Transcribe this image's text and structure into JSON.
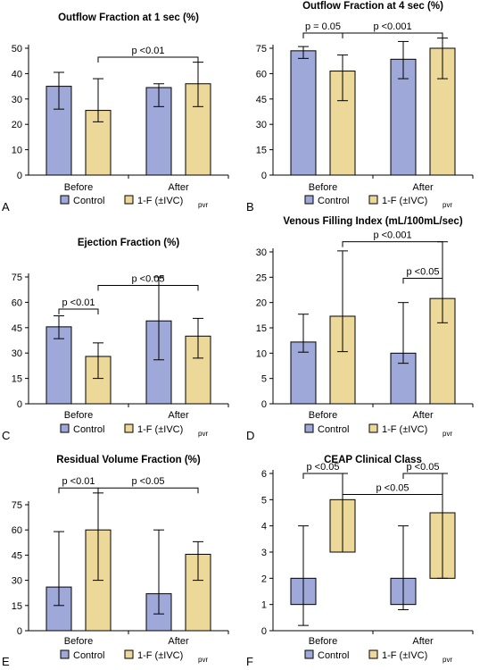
{
  "legend": {
    "control_label": "Control",
    "treatment_label_main": "1-F (±IVC)",
    "treatment_label_sub": "pvr",
    "colors": {
      "control": "#9ea9d9",
      "treatment": "#ecd99a"
    }
  },
  "chart_data": [
    {
      "id": "A",
      "type": "bar",
      "title": "Outflow Fraction at 1 sec (%)",
      "categories": [
        "Before",
        "After"
      ],
      "ylim": [
        0,
        50
      ],
      "yticks": [
        0,
        10,
        20,
        30,
        40,
        50
      ],
      "grid": false,
      "series": [
        {
          "name": "Control",
          "values": [
            35,
            34.5
          ],
          "err_low": [
            26,
            27
          ],
          "err_high": [
            40.5,
            36
          ]
        },
        {
          "name": "1-F (±IVC)pvr",
          "values": [
            25.5,
            36
          ],
          "err_low": [
            21,
            27
          ],
          "err_high": [
            38,
            44.5
          ]
        }
      ],
      "annotations": [
        {
          "text": "p <0.01",
          "from": [
            0,
            1
          ],
          "to": [
            1,
            1
          ],
          "y": 46.5
        }
      ]
    },
    {
      "id": "B",
      "type": "bar",
      "title": "Outflow Fraction at 4 sec (%)",
      "categories": [
        "Before",
        "After"
      ],
      "ylim": [
        0,
        75
      ],
      "yticks": [
        0,
        15,
        30,
        45,
        60,
        75
      ],
      "grid": false,
      "series": [
        {
          "name": "Control",
          "values": [
            73.5,
            68.5
          ],
          "err_low": [
            69,
            57
          ],
          "err_high": [
            76,
            79
          ]
        },
        {
          "name": "1-F (±IVC)pvr",
          "values": [
            61.5,
            75
          ],
          "err_low": [
            44,
            57
          ],
          "err_high": [
            71,
            81
          ]
        }
      ],
      "annotations": [
        {
          "text": "p = 0.05",
          "from": [
            0,
            0
          ],
          "to": [
            0,
            1
          ],
          "y": 84
        },
        {
          "text": "p <0.001",
          "from": [
            0,
            1
          ],
          "to": [
            1,
            1
          ],
          "y": 84
        }
      ]
    },
    {
      "id": "C",
      "type": "bar",
      "title": "Ejection Fraction (%)",
      "categories": [
        "Before",
        "After"
      ],
      "ylim": [
        0,
        75
      ],
      "yticks": [
        0,
        15,
        30,
        45,
        60,
        75
      ],
      "grid": false,
      "series": [
        {
          "name": "Control",
          "values": [
            45.5,
            49
          ],
          "err_low": [
            38.5,
            26
          ],
          "err_high": [
            52,
            75
          ]
        },
        {
          "name": "1-F (±IVC)pvr",
          "values": [
            28,
            40
          ],
          "err_low": [
            15,
            27
          ],
          "err_high": [
            36,
            50.5
          ]
        }
      ],
      "annotations": [
        {
          "text": "p <0.01",
          "from": [
            0,
            0
          ],
          "to": [
            0,
            1
          ],
          "y": 56
        },
        {
          "text": "p <0.05",
          "from": [
            0,
            1
          ],
          "to": [
            1,
            1
          ],
          "y": 70
        }
      ]
    },
    {
      "id": "D",
      "type": "bar",
      "title": "Venous Filling Index (mL/100mL/sec)",
      "categories": [
        "Before",
        "After"
      ],
      "ylim": [
        0,
        30
      ],
      "yticks": [
        0,
        5,
        10,
        15,
        20,
        25,
        30
      ],
      "grid": false,
      "series": [
        {
          "name": "Control",
          "values": [
            12.2,
            10.0
          ],
          "err_low": [
            10.2,
            8.0
          ],
          "err_high": [
            17.7,
            20.0
          ]
        },
        {
          "name": "1-F (±IVC)pvr",
          "values": [
            17.3,
            20.8
          ],
          "err_low": [
            10.3,
            16.0
          ],
          "err_high": [
            30.2,
            32
          ]
        }
      ],
      "annotations": [
        {
          "text": "p <0.001",
          "from": [
            0,
            1
          ],
          "to": [
            1,
            1
          ],
          "y": 32
        },
        {
          "text": "p <0.05",
          "from": [
            1,
            0
          ],
          "to": [
            1,
            1
          ],
          "y": 24.8
        }
      ]
    },
    {
      "id": "E",
      "type": "bar",
      "title": "Residual Volume Fraction (%)",
      "categories": [
        "Before",
        "After"
      ],
      "ylim": [
        0,
        75
      ],
      "yticks": [
        0,
        15,
        30,
        45,
        60,
        75
      ],
      "grid": false,
      "series": [
        {
          "name": "Control",
          "values": [
            26,
            22
          ],
          "err_low": [
            15,
            10
          ],
          "err_high": [
            59,
            60
          ]
        },
        {
          "name": "1-F (±IVC)pvr",
          "values": [
            60,
            45.5
          ],
          "err_low": [
            30,
            30
          ],
          "err_high": [
            82,
            53
          ]
        }
      ],
      "annotations": [
        {
          "text": "p <0.01",
          "from": [
            0,
            0
          ],
          "to": [
            0,
            1
          ],
          "y": 85
        },
        {
          "text": "p <0.05",
          "from": [
            0,
            1
          ],
          "to": [
            1,
            1
          ],
          "y": 85
        }
      ]
    },
    {
      "id": "F",
      "type": "bar",
      "title": "CEAP Clinical Class",
      "categories": [
        "Before",
        "After"
      ],
      "ylim": [
        0,
        6
      ],
      "yticks": [
        0,
        1,
        2,
        3,
        4,
        5,
        6
      ],
      "grid": false,
      "series": [
        {
          "name": "Control",
          "values": [
            2,
            2
          ],
          "base": [
            1,
            1
          ],
          "err_low": [
            0.2,
            0.8
          ],
          "err_high": [
            4,
            4
          ]
        },
        {
          "name": "1-F (±IVC)pvr",
          "values": [
            5,
            4.5
          ],
          "base": [
            3,
            2
          ],
          "err_low": [
            3,
            2
          ],
          "err_high": [
            6,
            6
          ]
        }
      ],
      "annotations": [
        {
          "text": "p <0.05",
          "from": [
            0,
            0
          ],
          "to": [
            0,
            1
          ],
          "y": 6
        },
        {
          "text": "p <0.05",
          "from": [
            1,
            0
          ],
          "to": [
            1,
            1
          ],
          "y": 6
        },
        {
          "text": "p <0.05",
          "from": [
            0,
            1
          ],
          "to": [
            1,
            1
          ],
          "y": 5.2
        }
      ]
    }
  ]
}
